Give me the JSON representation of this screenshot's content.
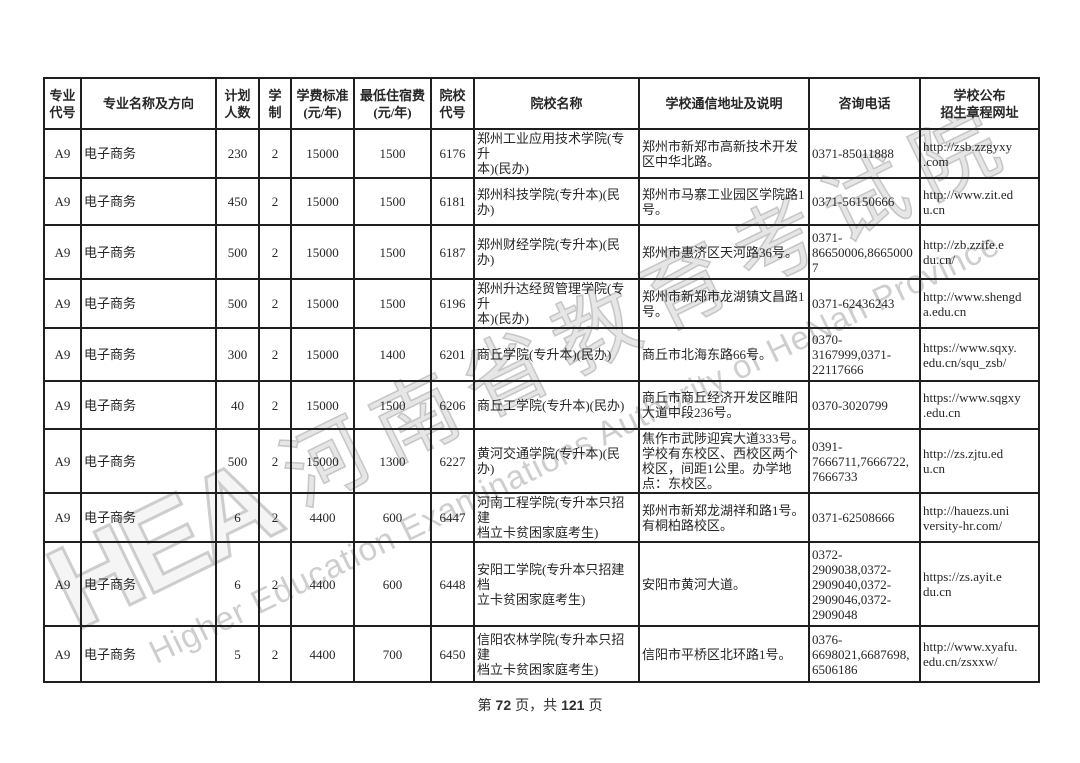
{
  "watermark": {
    "logo": "HEA",
    "cn": "河南省教育考试院",
    "en": "Higher Education Examinations Authority of HeNan Province"
  },
  "footer": {
    "prefix": "第",
    "page_number": "72",
    "middle": "页，共",
    "total_pages": "121",
    "suffix": "页"
  },
  "table": {
    "headers": [
      "专业\n代号",
      "专业名称及方向",
      "计划\n人数",
      "学\n制",
      "学费标准\n(元/年)",
      "最低住宿费\n(元/年)",
      "院校\n代号",
      "院校名称",
      "学校通信地址及说明",
      "咨询电话",
      "学校公布\n招生章程网址"
    ],
    "rows": [
      {
        "major_code": "A9",
        "major_name": "电子商务",
        "plan_count": "230",
        "duration": "2",
        "tuition": "15000",
        "min_lodging": "1500",
        "college_code": "6176",
        "college_name": "郑州工业应用技术学院(专升\n本)(民办)",
        "address": "郑州市新郑市高新技术开发\n区中华北路。",
        "phone": "0371-85011888",
        "url": "http://zsb.zzgyxy\n.com"
      },
      {
        "major_code": "A9",
        "major_name": "电子商务",
        "plan_count": "450",
        "duration": "2",
        "tuition": "15000",
        "min_lodging": "1500",
        "college_code": "6181",
        "college_name": "郑州科技学院(专升本)(民\n办)",
        "address": "郑州市马寨工业园区学院路1\n号。",
        "phone": "0371-56150666",
        "url": "http://www.zit.ed\nu.cn"
      },
      {
        "major_code": "A9",
        "major_name": "电子商务",
        "plan_count": "500",
        "duration": "2",
        "tuition": "15000",
        "min_lodging": "1500",
        "college_code": "6187",
        "college_name": "郑州财经学院(专升本)(民\n办)",
        "address": "郑州市惠济区天河路36号。",
        "phone": "0371-\n86650006,8665000\n7",
        "url": "http://zb.zzife.e\ndu.cn/"
      },
      {
        "major_code": "A9",
        "major_name": "电子商务",
        "plan_count": "500",
        "duration": "2",
        "tuition": "15000",
        "min_lodging": "1500",
        "college_code": "6196",
        "college_name": "郑州升达经贸管理学院(专升\n本)(民办)",
        "address": "郑州市新郑市龙湖镇文昌路1\n号。",
        "phone": "0371-62436243",
        "url": "http://www.shengd\na.edu.cn"
      },
      {
        "major_code": "A9",
        "major_name": "电子商务",
        "plan_count": "300",
        "duration": "2",
        "tuition": "15000",
        "min_lodging": "1400",
        "college_code": "6201",
        "college_name": "商丘学院(专升本)(民办)",
        "address": "商丘市北海东路66号。",
        "phone": "0370-\n3167999,0371-\n22117666",
        "url": "https://www.sqxy.\nedu.cn/squ_zsb/"
      },
      {
        "major_code": "A9",
        "major_name": "电子商务",
        "plan_count": "40",
        "duration": "2",
        "tuition": "15000",
        "min_lodging": "1500",
        "college_code": "6206",
        "college_name": "商丘工学院(专升本)(民办)",
        "address": "商丘市商丘经济开发区睢阳\n大道中段236号。",
        "phone": "0370-3020799",
        "url": "https://www.sqgxy\n.edu.cn"
      },
      {
        "major_code": "A9",
        "major_name": "电子商务",
        "plan_count": "500",
        "duration": "2",
        "tuition": "15000",
        "min_lodging": "1300",
        "college_code": "6227",
        "college_name": "黄河交通学院(专升本)(民\n办)",
        "address": "焦作市武陟迎宾大道333号。\n学校有东校区、西校区两个\n校区，间距1公里。办学地\n点：东校区。",
        "phone": "0391-\n7666711,7666722,\n7666733",
        "url": "http://zs.zjtu.ed\nu.cn"
      },
      {
        "major_code": "A9",
        "major_name": "电子商务",
        "plan_count": "6",
        "duration": "2",
        "tuition": "4400",
        "min_lodging": "600",
        "college_code": "6447",
        "college_name": "河南工程学院(专升本只招建\n档立卡贫困家庭考生)",
        "address": "郑州市新郑龙湖祥和路1号。\n有桐柏路校区。",
        "phone": "0371-62508666",
        "url": "http://hauezs.uni\nversity-hr.com/"
      },
      {
        "major_code": "A9",
        "major_name": "电子商务",
        "plan_count": "6",
        "duration": "2",
        "tuition": "4400",
        "min_lodging": "600",
        "college_code": "6448",
        "college_name": "安阳工学院(专升本只招建档\n立卡贫困家庭考生)",
        "address": "安阳市黄河大道。",
        "phone": "0372-\n2909038,0372-\n2909040,0372-\n2909046,0372-\n2909048",
        "url": "https://zs.ayit.e\ndu.cn"
      },
      {
        "major_code": "A9",
        "major_name": "电子商务",
        "plan_count": "5",
        "duration": "2",
        "tuition": "4400",
        "min_lodging": "700",
        "college_code": "6450",
        "college_name": "信阳农林学院(专升本只招建\n档立卡贫困家庭考生)",
        "address": "信阳市平桥区北环路1号。",
        "phone": "0376-\n6698021,6687698,\n6506186",
        "url": "http://www.xyafu.\nedu.cn/zsxxw/"
      }
    ]
  }
}
